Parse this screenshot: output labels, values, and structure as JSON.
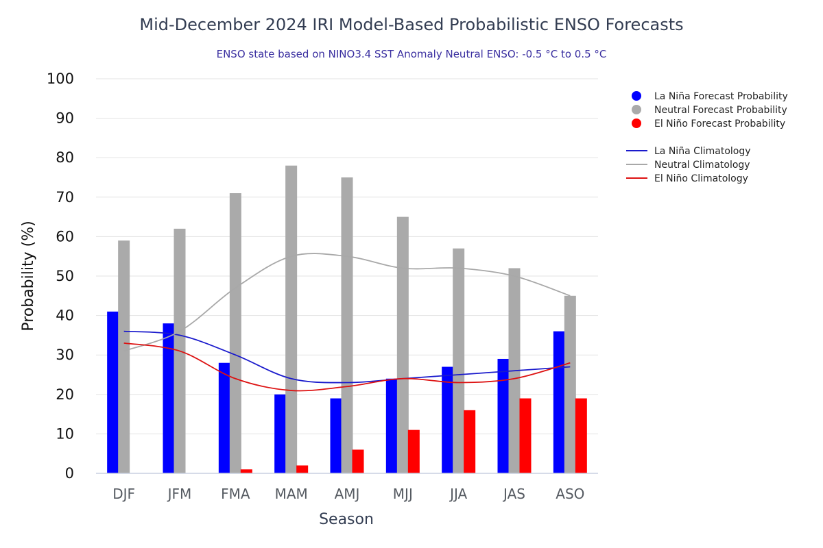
{
  "chart_data": {
    "type": "bar",
    "title": "Mid-December 2024 IRI Model-Based Probabilistic ENSO Forecasts",
    "subtitle": "ENSO state based on NINO3.4 SST Anomaly Neutral ENSO: -0.5 °C to 0.5 °C",
    "xlabel": "Season",
    "ylabel": "Probability (%)",
    "ylim": [
      0,
      100
    ],
    "yticks": [
      "0",
      "10",
      "20",
      "30",
      "40",
      "50",
      "60",
      "70",
      "80",
      "90",
      "100"
    ],
    "grid": true,
    "legend_position": "right",
    "categories": [
      "DJF",
      "JFM",
      "FMA",
      "MAM",
      "AMJ",
      "MJJ",
      "JJA",
      "JAS",
      "ASO"
    ],
    "series": [
      {
        "name": "La Niña Forecast Probability",
        "color": "#0000ff",
        "values": [
          41,
          38,
          28,
          20,
          19,
          24,
          27,
          29,
          36
        ]
      },
      {
        "name": "Neutral Forecast Probability",
        "color": "#aaaaaa",
        "values": [
          59,
          62,
          71,
          78,
          75,
          65,
          57,
          52,
          45
        ]
      },
      {
        "name": "El Niño Forecast Probability",
        "color": "#ff0000",
        "values": [
          0,
          0,
          1,
          2,
          6,
          11,
          16,
          19,
          19
        ]
      }
    ],
    "lines": [
      {
        "name": "La Niña Climatology",
        "color": "#1a1acc",
        "values": [
          36,
          35,
          30,
          24,
          23,
          24,
          25,
          26,
          27
        ]
      },
      {
        "name": "Neutral Climatology",
        "color": "#a8a8a8",
        "values": [
          31,
          36,
          47,
          55,
          55,
          52,
          52,
          50,
          45
        ]
      },
      {
        "name": "El Niño Climatology",
        "color": "#dd1111",
        "values": [
          33,
          31,
          24,
          21,
          22,
          24,
          23,
          24,
          28
        ]
      }
    ]
  }
}
